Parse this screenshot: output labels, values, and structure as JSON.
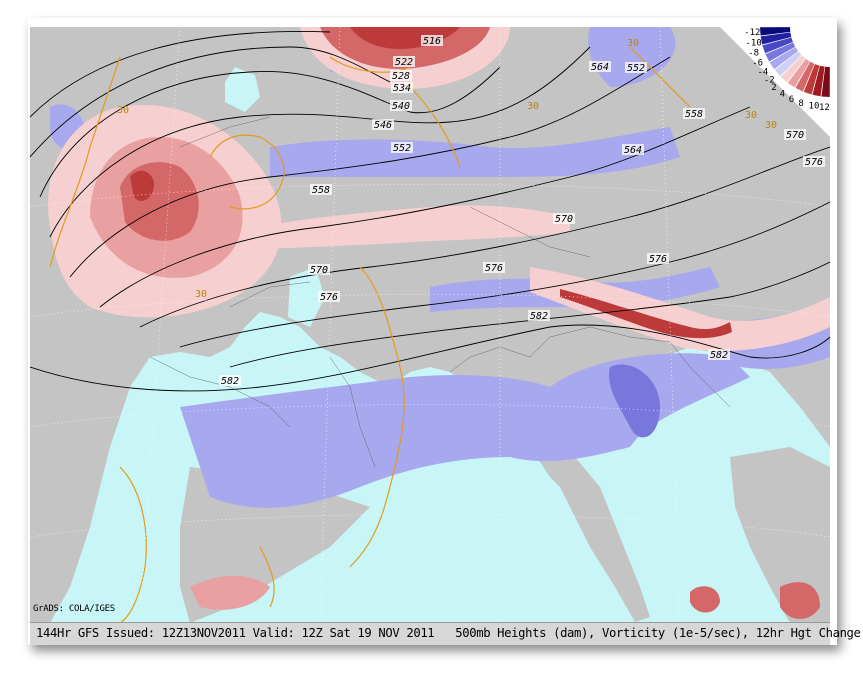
{
  "footer": {
    "text": "144Hr GFS Issued: 12Z13NOV2011 Valid: 12Z Sat 19 NOV 2011   500mb Heights (dam), Vorticity (1e-5/sec), 12hr Hgt Change (m)"
  },
  "credit": "GrADS: COLA/IGES",
  "contours": {
    "height_labels": [
      "516",
      "522",
      "528",
      "534",
      "540",
      "546",
      "552",
      "552",
      "558",
      "558",
      "564",
      "564",
      "570",
      "570",
      "570",
      "576",
      "576",
      "576",
      "576",
      "582",
      "582",
      "582"
    ],
    "height_change_labels": [
      "30",
      "30",
      "30",
      "30",
      "30",
      "30"
    ]
  },
  "colorbar": {
    "labels": [
      "12",
      "10",
      "8",
      "6",
      "4",
      "2",
      "-2",
      "-4",
      "-6",
      "-8",
      "-10",
      "-12"
    ],
    "colors": [
      "#7a0a14",
      "#9e1c22",
      "#bd3a3a",
      "#d46868",
      "#e8a0a0",
      "#f6d0d0",
      "#d0d0f4",
      "#a8a8ee",
      "#7878dc",
      "#4848c4",
      "#2020a0",
      "#0a0a78"
    ]
  },
  "colors": {
    "ocean": "#c8f6f6",
    "land": "#c4c4c4",
    "contour": "#000000",
    "height_change": "#e39b1c"
  }
}
